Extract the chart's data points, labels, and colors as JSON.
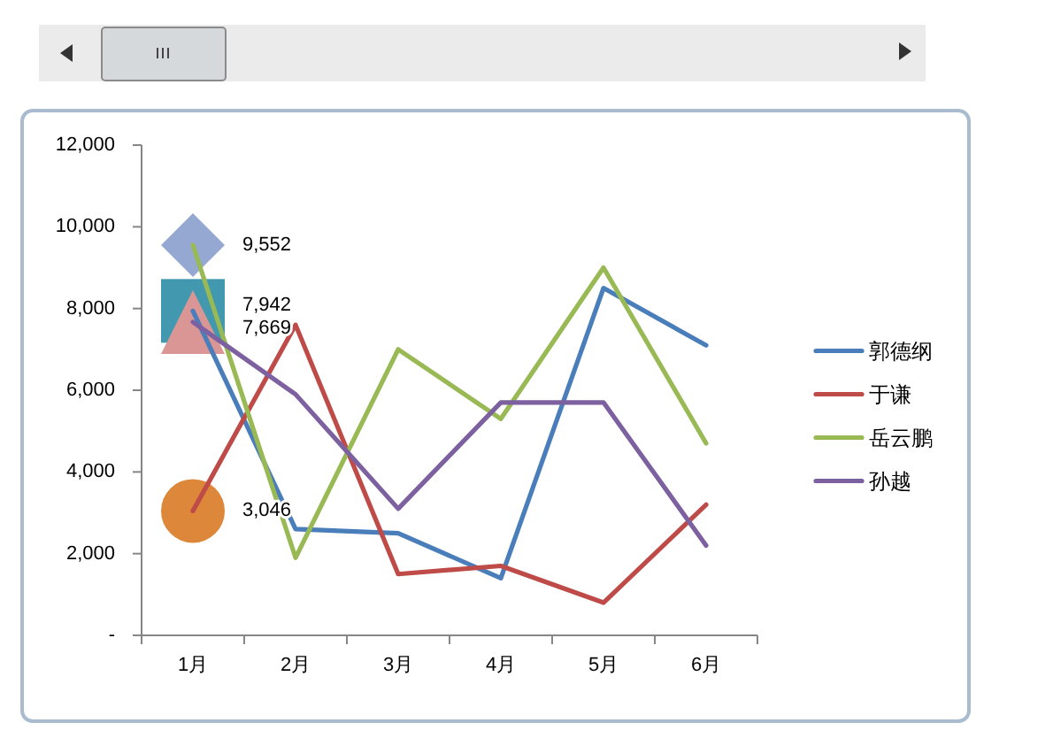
{
  "chart_data": {
    "type": "line",
    "categories": [
      "1月",
      "2月",
      "3月",
      "4月",
      "5月",
      "6月"
    ],
    "series": [
      {
        "name": "郭德纲",
        "color": "#4a7ebb",
        "values": [
          7942,
          2600,
          2500,
          1400,
          8500,
          7100
        ]
      },
      {
        "name": "于谦",
        "color": "#be4b48",
        "values": [
          3046,
          7600,
          1500,
          1700,
          800,
          3200
        ]
      },
      {
        "name": "岳云鹏",
        "color": "#98b954",
        "values": [
          9552,
          1900,
          7000,
          5300,
          9000,
          4700
        ]
      },
      {
        "name": "孙越",
        "color": "#7d60a0",
        "values": [
          7669,
          5900,
          3100,
          5700,
          5700,
          2200
        ]
      },
      {
        "type": "scatter",
        "marker": "diamond",
        "color": "#95a8d2",
        "x": [
          "1月"
        ],
        "values": [
          9552
        ],
        "value_labels": [
          "9,552"
        ]
      },
      {
        "type": "scatter",
        "marker": "square",
        "color": "#4198af",
        "x": [
          "1月"
        ],
        "values": [
          7942
        ],
        "value_labels": [
          "7,942"
        ]
      },
      {
        "type": "scatter",
        "marker": "triangle",
        "color": "#d99694",
        "x": [
          "1月"
        ],
        "values": [
          7669
        ],
        "value_labels": [
          "7,669"
        ]
      },
      {
        "type": "scatter",
        "marker": "circle",
        "color": "#dd873a",
        "x": [
          "1月"
        ],
        "values": [
          3046
        ],
        "value_labels": [
          "3,046"
        ]
      }
    ],
    "ylim": [
      0,
      12000
    ],
    "yticks": [
      {
        "value": 0,
        "label": "-"
      },
      {
        "value": 2000,
        "label": "2,000"
      },
      {
        "value": 4000,
        "label": "4,000"
      },
      {
        "value": 6000,
        "label": "6,000"
      },
      {
        "value": 8000,
        "label": "8,000"
      },
      {
        "value": 10000,
        "label": "10,000"
      },
      {
        "value": 12000,
        "label": "12,000"
      }
    ],
    "legend": "right"
  }
}
